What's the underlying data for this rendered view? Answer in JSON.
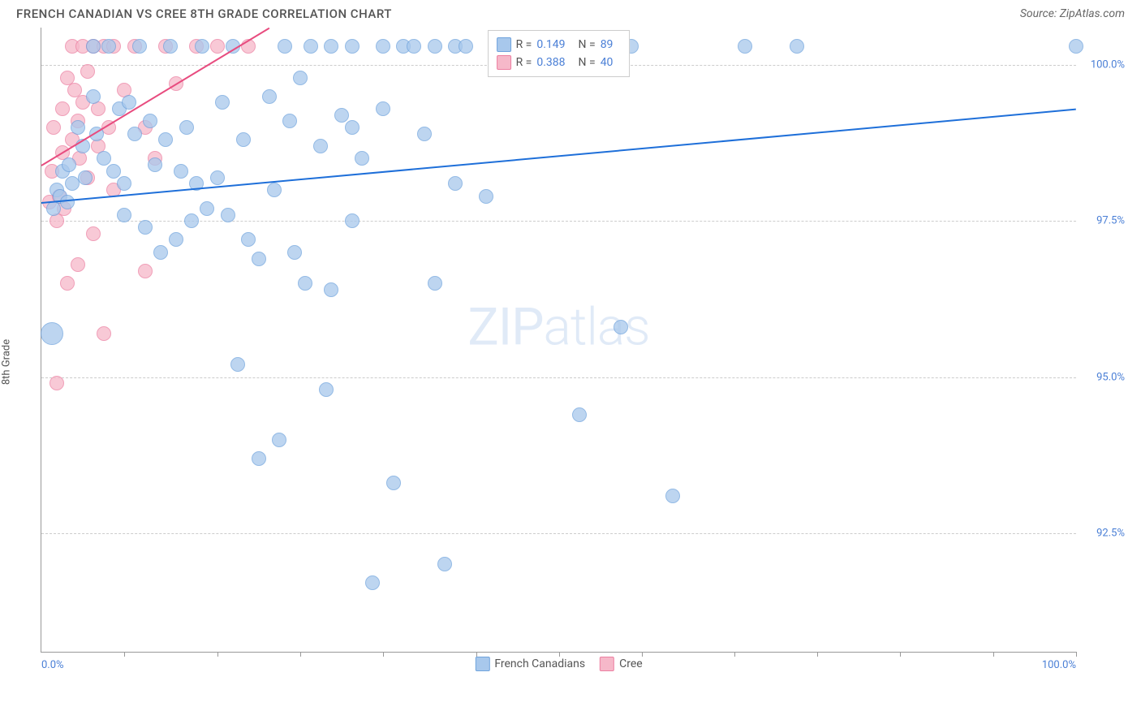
{
  "title": "FRENCH CANADIAN VS CREE 8TH GRADE CORRELATION CHART",
  "source": "Source: ZipAtlas.com",
  "ylabel": "8th Grade",
  "watermark": "ZIPatlas",
  "chart": {
    "type": "scatter",
    "background_color": "#ffffff",
    "grid_color": "#cccccc",
    "grid_dash": true,
    "axis_color": "#999999",
    "tick_label_color": "#4a7fd6",
    "xlim": [
      0,
      100
    ],
    "ylim": [
      90.6,
      100.6
    ],
    "yticks": [
      {
        "v": 92.5,
        "label": "92.5%"
      },
      {
        "v": 95.0,
        "label": "95.0%"
      },
      {
        "v": 97.5,
        "label": "97.5%"
      },
      {
        "v": 100.0,
        "label": "100.0%"
      }
    ],
    "xticks_minor": [
      8,
      17,
      25,
      33,
      42,
      50,
      58,
      67,
      75,
      83,
      92,
      100
    ],
    "xtick_labels": [
      {
        "v": 0,
        "label": "0.0%"
      },
      {
        "v": 100,
        "label": "100.0%"
      }
    ]
  },
  "series_a": {
    "label": "French Canadians",
    "color_fill": "#a8c8ec",
    "color_stroke": "#6fa3dd",
    "opacity": 0.75,
    "marker_radius": 9,
    "trend": {
      "x1": 0,
      "y1": 97.8,
      "x2": 100,
      "y2": 99.3,
      "color": "#1e6fd9",
      "width": 2
    },
    "stats": {
      "r": "0.149",
      "n": "89"
    },
    "points": [
      {
        "x": 1.0,
        "y": 95.7,
        "r": 14
      },
      {
        "x": 1.2,
        "y": 97.7
      },
      {
        "x": 1.5,
        "y": 98.0
      },
      {
        "x": 1.8,
        "y": 97.9
      },
      {
        "x": 2.0,
        "y": 98.3
      },
      {
        "x": 2.5,
        "y": 97.8
      },
      {
        "x": 2.7,
        "y": 98.4
      },
      {
        "x": 3.0,
        "y": 98.1
      },
      {
        "x": 3.5,
        "y": 99.0
      },
      {
        "x": 4.0,
        "y": 98.7
      },
      {
        "x": 4.2,
        "y": 98.2
      },
      {
        "x": 5.0,
        "y": 99.5
      },
      {
        "x": 5.0,
        "y": 100.3
      },
      {
        "x": 5.3,
        "y": 98.9
      },
      {
        "x": 6.0,
        "y": 98.5
      },
      {
        "x": 6.5,
        "y": 100.3
      },
      {
        "x": 7.0,
        "y": 98.3
      },
      {
        "x": 7.5,
        "y": 99.3
      },
      {
        "x": 8.0,
        "y": 98.1
      },
      {
        "x": 8.0,
        "y": 97.6
      },
      {
        "x": 8.5,
        "y": 99.4
      },
      {
        "x": 9.0,
        "y": 98.9
      },
      {
        "x": 9.5,
        "y": 100.3
      },
      {
        "x": 10.0,
        "y": 97.4
      },
      {
        "x": 10.5,
        "y": 99.1
      },
      {
        "x": 11.0,
        "y": 98.4
      },
      {
        "x": 11.5,
        "y": 97.0
      },
      {
        "x": 12.0,
        "y": 98.8
      },
      {
        "x": 12.5,
        "y": 100.3
      },
      {
        "x": 13.0,
        "y": 97.2
      },
      {
        "x": 13.5,
        "y": 98.3
      },
      {
        "x": 14.0,
        "y": 99.0
      },
      {
        "x": 14.5,
        "y": 97.5
      },
      {
        "x": 15.0,
        "y": 98.1
      },
      {
        "x": 15.5,
        "y": 100.3
      },
      {
        "x": 16.0,
        "y": 97.7
      },
      {
        "x": 17.0,
        "y": 98.2
      },
      {
        "x": 17.5,
        "y": 99.4
      },
      {
        "x": 18.0,
        "y": 97.6
      },
      {
        "x": 18.5,
        "y": 100.3
      },
      {
        "x": 19.0,
        "y": 95.2
      },
      {
        "x": 19.5,
        "y": 98.8
      },
      {
        "x": 20.0,
        "y": 97.2
      },
      {
        "x": 21.0,
        "y": 93.7
      },
      {
        "x": 21.0,
        "y": 96.9
      },
      {
        "x": 22.0,
        "y": 99.5
      },
      {
        "x": 22.5,
        "y": 98.0
      },
      {
        "x": 23.0,
        "y": 94.0
      },
      {
        "x": 23.5,
        "y": 100.3
      },
      {
        "x": 24.0,
        "y": 99.1
      },
      {
        "x": 24.5,
        "y": 97.0
      },
      {
        "x": 25.0,
        "y": 99.8
      },
      {
        "x": 25.5,
        "y": 96.5
      },
      {
        "x": 26.0,
        "y": 100.3
      },
      {
        "x": 27.0,
        "y": 98.7
      },
      {
        "x": 27.5,
        "y": 94.8
      },
      {
        "x": 28.0,
        "y": 100.3
      },
      {
        "x": 28.0,
        "y": 96.4
      },
      {
        "x": 29.0,
        "y": 99.2
      },
      {
        "x": 30.0,
        "y": 97.5
      },
      {
        "x": 30.0,
        "y": 100.3
      },
      {
        "x": 30.0,
        "y": 99.0
      },
      {
        "x": 31.0,
        "y": 98.5
      },
      {
        "x": 32.0,
        "y": 91.7
      },
      {
        "x": 33.0,
        "y": 99.3
      },
      {
        "x": 33.0,
        "y": 100.3
      },
      {
        "x": 34.0,
        "y": 93.3
      },
      {
        "x": 35.0,
        "y": 100.3
      },
      {
        "x": 36.0,
        "y": 100.3
      },
      {
        "x": 37.0,
        "y": 98.9
      },
      {
        "x": 38.0,
        "y": 100.3
      },
      {
        "x": 38.0,
        "y": 96.5
      },
      {
        "x": 39.0,
        "y": 92.0
      },
      {
        "x": 40.0,
        "y": 100.3
      },
      {
        "x": 40.0,
        "y": 98.1
      },
      {
        "x": 41.0,
        "y": 100.3
      },
      {
        "x": 43.0,
        "y": 97.9
      },
      {
        "x": 45.0,
        "y": 100.3
      },
      {
        "x": 47.0,
        "y": 100.3
      },
      {
        "x": 50.0,
        "y": 100.3
      },
      {
        "x": 52.0,
        "y": 94.4
      },
      {
        "x": 53.0,
        "y": 100.3
      },
      {
        "x": 55.0,
        "y": 100.3
      },
      {
        "x": 56.0,
        "y": 95.8
      },
      {
        "x": 57.0,
        "y": 100.3
      },
      {
        "x": 61.0,
        "y": 93.1
      },
      {
        "x": 68.0,
        "y": 100.3
      },
      {
        "x": 73.0,
        "y": 100.3
      },
      {
        "x": 100.0,
        "y": 100.3
      }
    ]
  },
  "series_b": {
    "label": "Cree",
    "color_fill": "#f6b8c9",
    "color_stroke": "#ec7fa1",
    "opacity": 0.75,
    "marker_radius": 9,
    "trend": {
      "x1": 0,
      "y1": 98.4,
      "x2": 22,
      "y2": 100.6,
      "color": "#e84c7f",
      "width": 2
    },
    "stats": {
      "r": "0.388",
      "n": "40"
    },
    "points": [
      {
        "x": 0.8,
        "y": 97.8
      },
      {
        "x": 1.0,
        "y": 98.3
      },
      {
        "x": 1.2,
        "y": 99.0
      },
      {
        "x": 1.5,
        "y": 97.5
      },
      {
        "x": 1.5,
        "y": 94.9
      },
      {
        "x": 1.7,
        "y": 97.9
      },
      {
        "x": 2.0,
        "y": 98.6
      },
      {
        "x": 2.0,
        "y": 99.3
      },
      {
        "x": 2.2,
        "y": 97.7
      },
      {
        "x": 2.5,
        "y": 99.8
      },
      {
        "x": 2.5,
        "y": 96.5
      },
      {
        "x": 3.0,
        "y": 98.8
      },
      {
        "x": 3.0,
        "y": 100.3
      },
      {
        "x": 3.2,
        "y": 99.6
      },
      {
        "x": 3.5,
        "y": 99.1
      },
      {
        "x": 3.5,
        "y": 96.8
      },
      {
        "x": 3.7,
        "y": 98.5
      },
      {
        "x": 4.0,
        "y": 99.4
      },
      {
        "x": 4.0,
        "y": 100.3
      },
      {
        "x": 4.5,
        "y": 99.9
      },
      {
        "x": 4.5,
        "y": 98.2
      },
      {
        "x": 5.0,
        "y": 100.3
      },
      {
        "x": 5.0,
        "y": 97.3
      },
      {
        "x": 5.5,
        "y": 98.7
      },
      {
        "x": 5.5,
        "y": 99.3
      },
      {
        "x": 6.0,
        "y": 100.3
      },
      {
        "x": 6.0,
        "y": 95.7
      },
      {
        "x": 6.5,
        "y": 99.0
      },
      {
        "x": 7.0,
        "y": 98.0
      },
      {
        "x": 7.0,
        "y": 100.3
      },
      {
        "x": 8.0,
        "y": 99.6
      },
      {
        "x": 9.0,
        "y": 100.3
      },
      {
        "x": 10.0,
        "y": 99.0
      },
      {
        "x": 10.0,
        "y": 96.7
      },
      {
        "x": 11.0,
        "y": 98.5
      },
      {
        "x": 12.0,
        "y": 100.3
      },
      {
        "x": 13.0,
        "y": 99.7
      },
      {
        "x": 15.0,
        "y": 100.3
      },
      {
        "x": 17.0,
        "y": 100.3
      },
      {
        "x": 20.0,
        "y": 100.3
      }
    ]
  },
  "legend_stats_labels": {
    "r": "R =",
    "n": "N ="
  },
  "legend_bottom": [
    {
      "key": "series_a"
    },
    {
      "key": "series_b"
    }
  ]
}
